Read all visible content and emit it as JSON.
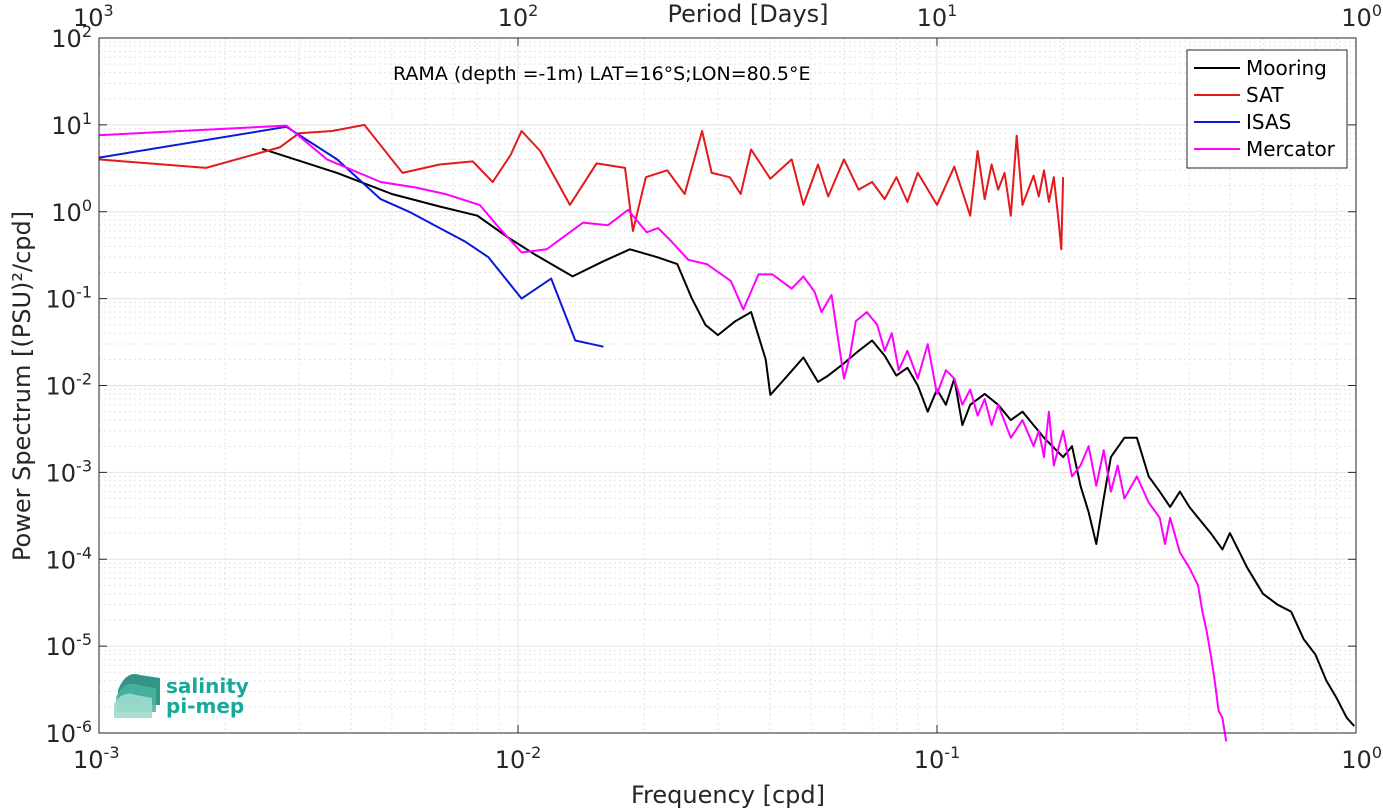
{
  "chart_data": {
    "type": "line",
    "title": "RAMA (depth =-1m) LAT=16°S;LON=80.5°E",
    "xlabel": "Frequency [cpd]",
    "ylabel": "Power Spectrum [(PSU)²/cpd]",
    "top_xlabel": "Period [Days]",
    "x_scale": "log",
    "y_scale": "log",
    "xlim": [
      0.001,
      1
    ],
    "ylim": [
      1e-06,
      100
    ],
    "grid": true,
    "legend_position": "top-right",
    "x_ticks": [
      0.001,
      0.01,
      0.1,
      1
    ],
    "x_tick_labels": [
      {
        "base": "10",
        "exp": "-3"
      },
      {
        "base": "10",
        "exp": "-2"
      },
      {
        "base": "10",
        "exp": "-1"
      },
      {
        "base": "10",
        "exp": "0"
      }
    ],
    "top_ticks": [
      {
        "freq": 0.001,
        "base": "10",
        "exp": "3"
      },
      {
        "freq": 0.01,
        "base": "10",
        "exp": "2"
      },
      {
        "freq": 0.1,
        "base": "10",
        "exp": "1"
      },
      {
        "freq": 1,
        "base": "10",
        "exp": "0"
      }
    ],
    "y_ticks": [
      1e-06,
      1e-05,
      0.0001,
      0.001,
      0.01,
      0.1,
      1,
      10,
      100
    ],
    "y_tick_labels": [
      {
        "base": "10",
        "exp": "-6"
      },
      {
        "base": "10",
        "exp": "-5"
      },
      {
        "base": "10",
        "exp": "-4"
      },
      {
        "base": "10",
        "exp": "-3"
      },
      {
        "base": "10",
        "exp": "-2"
      },
      {
        "base": "10",
        "exp": "-1"
      },
      {
        "base": "10",
        "exp": "0"
      },
      {
        "base": "10",
        "exp": "1"
      },
      {
        "base": "10",
        "exp": "2"
      }
    ],
    "series": [
      {
        "name": "Mooring",
        "color": "#000000",
        "points": [
          [
            0.00245,
            5.3
          ],
          [
            0.0037,
            2.8
          ],
          [
            0.005,
            1.6
          ],
          [
            0.0065,
            1.15
          ],
          [
            0.008,
            0.9
          ],
          [
            0.0095,
            0.5
          ],
          [
            0.011,
            0.32
          ],
          [
            0.0135,
            0.18
          ],
          [
            0.016,
            0.27
          ],
          [
            0.0185,
            0.37
          ],
          [
            0.0215,
            0.3
          ],
          [
            0.024,
            0.25
          ],
          [
            0.026,
            0.1
          ],
          [
            0.028,
            0.05
          ],
          [
            0.03,
            0.038
          ],
          [
            0.033,
            0.055
          ],
          [
            0.036,
            0.07
          ],
          [
            0.039,
            0.02
          ],
          [
            0.04,
            0.0078
          ],
          [
            0.044,
            0.013
          ],
          [
            0.048,
            0.021
          ],
          [
            0.052,
            0.011
          ],
          [
            0.055,
            0.013
          ],
          [
            0.06,
            0.018
          ],
          [
            0.065,
            0.025
          ],
          [
            0.07,
            0.033
          ],
          [
            0.075,
            0.022
          ],
          [
            0.08,
            0.013
          ],
          [
            0.085,
            0.016
          ],
          [
            0.09,
            0.01
          ],
          [
            0.095,
            0.005
          ],
          [
            0.1,
            0.009
          ],
          [
            0.105,
            0.006
          ],
          [
            0.11,
            0.012
          ],
          [
            0.115,
            0.0035
          ],
          [
            0.12,
            0.006
          ],
          [
            0.13,
            0.008
          ],
          [
            0.14,
            0.006
          ],
          [
            0.15,
            0.004
          ],
          [
            0.16,
            0.005
          ],
          [
            0.17,
            0.0035
          ],
          [
            0.18,
            0.0025
          ],
          [
            0.2,
            0.0015
          ],
          [
            0.21,
            0.002
          ],
          [
            0.22,
            0.0007
          ],
          [
            0.23,
            0.00035
          ],
          [
            0.24,
            0.00015
          ],
          [
            0.25,
            0.0005
          ],
          [
            0.26,
            0.0015
          ],
          [
            0.28,
            0.0025
          ],
          [
            0.3,
            0.0025
          ],
          [
            0.32,
            0.0009
          ],
          [
            0.34,
            0.0006
          ],
          [
            0.36,
            0.0004
          ],
          [
            0.38,
            0.0006
          ],
          [
            0.4,
            0.0004
          ],
          [
            0.42,
            0.0003
          ],
          [
            0.45,
            0.0002
          ],
          [
            0.48,
            0.00013
          ],
          [
            0.5,
            0.0002
          ],
          [
            0.55,
            8e-05
          ],
          [
            0.6,
            4e-05
          ],
          [
            0.65,
            3e-05
          ],
          [
            0.7,
            2.5e-05
          ],
          [
            0.75,
            1.2e-05
          ],
          [
            0.8,
            8e-06
          ],
          [
            0.85,
            4e-06
          ],
          [
            0.9,
            2.5e-06
          ],
          [
            0.95,
            1.5e-06
          ],
          [
            0.99,
            1.2e-06
          ]
        ]
      },
      {
        "name": "SAT",
        "color": "#e31a1c",
        "points": [
          [
            0.001,
            4
          ],
          [
            0.0018,
            3.2
          ],
          [
            0.0027,
            5.5
          ],
          [
            0.003,
            8
          ],
          [
            0.0036,
            8.5
          ],
          [
            0.0043,
            10
          ],
          [
            0.0053,
            2.8
          ],
          [
            0.0065,
            3.5
          ],
          [
            0.0078,
            3.8
          ],
          [
            0.0087,
            2.2
          ],
          [
            0.0096,
            4.5
          ],
          [
            0.0102,
            8.5
          ],
          [
            0.0113,
            5
          ],
          [
            0.0133,
            1.2
          ],
          [
            0.0154,
            3.6
          ],
          [
            0.018,
            3.2
          ],
          [
            0.0188,
            0.6
          ],
          [
            0.0202,
            2.5
          ],
          [
            0.0227,
            3
          ],
          [
            0.025,
            1.6
          ],
          [
            0.0275,
            8.5
          ],
          [
            0.029,
            2.8
          ],
          [
            0.032,
            2.5
          ],
          [
            0.034,
            1.6
          ],
          [
            0.036,
            5.2
          ],
          [
            0.04,
            2.4
          ],
          [
            0.045,
            4
          ],
          [
            0.048,
            1.2
          ],
          [
            0.052,
            3.5
          ],
          [
            0.055,
            1.5
          ],
          [
            0.06,
            4
          ],
          [
            0.065,
            1.8
          ],
          [
            0.07,
            2.2
          ],
          [
            0.075,
            1.4
          ],
          [
            0.08,
            2.5
          ],
          [
            0.085,
            1.3
          ],
          [
            0.09,
            2.8
          ],
          [
            0.1,
            1.2
          ],
          [
            0.11,
            3.3
          ],
          [
            0.12,
            0.9
          ],
          [
            0.125,
            5
          ],
          [
            0.13,
            1.4
          ],
          [
            0.135,
            3.5
          ],
          [
            0.14,
            1.8
          ],
          [
            0.145,
            2.8
          ],
          [
            0.15,
            0.9
          ],
          [
            0.155,
            7.5
          ],
          [
            0.16,
            1.2
          ],
          [
            0.17,
            2.6
          ],
          [
            0.175,
            1.5
          ],
          [
            0.18,
            3
          ],
          [
            0.185,
            1.3
          ],
          [
            0.19,
            2.5
          ],
          [
            0.195,
            0.8
          ],
          [
            0.198,
            0.37
          ],
          [
            0.2,
            2.5
          ]
        ]
      },
      {
        "name": "ISAS",
        "color": "#0a1ad6",
        "points": [
          [
            0.001,
            4.2
          ],
          [
            0.0028,
            9.5
          ],
          [
            0.0037,
            4
          ],
          [
            0.0047,
            1.4
          ],
          [
            0.0055,
            1
          ],
          [
            0.0065,
            0.65
          ],
          [
            0.0075,
            0.45
          ],
          [
            0.0085,
            0.3
          ],
          [
            0.0102,
            0.1
          ],
          [
            0.012,
            0.17
          ],
          [
            0.0137,
            0.033
          ],
          [
            0.016,
            0.028
          ]
        ]
      },
      {
        "name": "Mercator",
        "color": "#ff00ff",
        "points": [
          [
            0.001,
            7.6
          ],
          [
            0.0028,
            9.8
          ],
          [
            0.0035,
            4
          ],
          [
            0.0047,
            2.2
          ],
          [
            0.0057,
            1.9
          ],
          [
            0.0067,
            1.6
          ],
          [
            0.0081,
            1.2
          ],
          [
            0.0089,
            0.7
          ],
          [
            0.0102,
            0.34
          ],
          [
            0.0117,
            0.37
          ],
          [
            0.0143,
            0.75
          ],
          [
            0.0164,
            0.7
          ],
          [
            0.0183,
            1.05
          ],
          [
            0.0203,
            0.58
          ],
          [
            0.0216,
            0.65
          ],
          [
            0.0233,
            0.45
          ],
          [
            0.0255,
            0.28
          ],
          [
            0.0282,
            0.25
          ],
          [
            0.0322,
            0.16
          ],
          [
            0.0345,
            0.075
          ],
          [
            0.0375,
            0.19
          ],
          [
            0.0405,
            0.19
          ],
          [
            0.045,
            0.13
          ],
          [
            0.048,
            0.18
          ],
          [
            0.051,
            0.12
          ],
          [
            0.053,
            0.07
          ],
          [
            0.056,
            0.11
          ],
          [
            0.06,
            0.012
          ],
          [
            0.062,
            0.022
          ],
          [
            0.064,
            0.055
          ],
          [
            0.068,
            0.07
          ],
          [
            0.072,
            0.05
          ],
          [
            0.075,
            0.025
          ],
          [
            0.078,
            0.04
          ],
          [
            0.081,
            0.015
          ],
          [
            0.085,
            0.025
          ],
          [
            0.09,
            0.012
          ],
          [
            0.095,
            0.03
          ],
          [
            0.1,
            0.008
          ],
          [
            0.105,
            0.015
          ],
          [
            0.11,
            0.012
          ],
          [
            0.115,
            0.006
          ],
          [
            0.12,
            0.009
          ],
          [
            0.125,
            0.0045
          ],
          [
            0.13,
            0.007
          ],
          [
            0.135,
            0.0035
          ],
          [
            0.14,
            0.006
          ],
          [
            0.15,
            0.0025
          ],
          [
            0.16,
            0.004
          ],
          [
            0.17,
            0.002
          ],
          [
            0.175,
            0.003
          ],
          [
            0.18,
            0.0015
          ],
          [
            0.185,
            0.005
          ],
          [
            0.19,
            0.0012
          ],
          [
            0.2,
            0.003
          ],
          [
            0.21,
            0.0009
          ],
          [
            0.22,
            0.0012
          ],
          [
            0.23,
            0.002
          ],
          [
            0.24,
            0.0007
          ],
          [
            0.25,
            0.0018
          ],
          [
            0.26,
            0.0006
          ],
          [
            0.27,
            0.0012
          ],
          [
            0.28,
            0.0005
          ],
          [
            0.3,
            0.0009
          ],
          [
            0.32,
            0.00045
          ],
          [
            0.34,
            0.0003
          ],
          [
            0.35,
            0.00015
          ],
          [
            0.36,
            0.0003
          ],
          [
            0.38,
            0.00012
          ],
          [
            0.4,
            8e-05
          ],
          [
            0.42,
            5e-05
          ],
          [
            0.43,
            2.5e-05
          ],
          [
            0.44,
            1.5e-05
          ],
          [
            0.45,
            8e-06
          ],
          [
            0.46,
            4e-06
          ],
          [
            0.47,
            1.8e-06
          ],
          [
            0.48,
            1.5e-06
          ],
          [
            0.49,
            8e-07
          ]
        ]
      }
    ]
  },
  "logo": {
    "line1": "salinity",
    "line2": "pi-mep"
  },
  "colors": {
    "grid": "#e3e3e3",
    "axis": "#262626",
    "logo_accent": "#18a99a"
  }
}
